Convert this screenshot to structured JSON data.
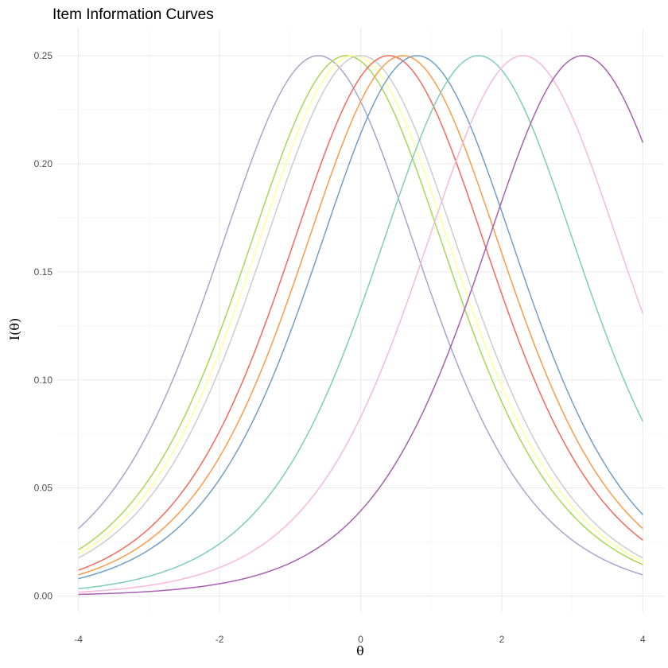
{
  "chart_data": {
    "type": "line",
    "title": "Item Information Curves",
    "xlabel": "θ",
    "ylabel": "I(θ)",
    "xlim": [
      -4.3,
      4.3
    ],
    "ylim": [
      -0.0075,
      0.2625
    ],
    "x_ticks": [
      -4,
      -2,
      0,
      2,
      4
    ],
    "x_tick_labels": [
      "-4",
      "-2",
      "0",
      "2",
      "4"
    ],
    "y_ticks": [
      0,
      0.05,
      0.1,
      0.15,
      0.2,
      0.25
    ],
    "y_tick_labels": [
      "0.00",
      "0.05",
      "0.10",
      "0.15",
      "0.20",
      "0.25"
    ],
    "grid": true,
    "legend": "none",
    "curve_model": "I(θ) = P(θ)(1 − P(θ)), P(θ) = 1 / (1 + e^−(θ − b))",
    "series": [
      {
        "b": -0.6,
        "color": "#A9A4CC"
      },
      {
        "b": -0.2,
        "color": "#A6D854"
      },
      {
        "b": -0.1,
        "color": "#FFFF99"
      },
      {
        "b": 0.0,
        "color": "#CCCCCC"
      },
      {
        "b": 0.4,
        "color": "#F4695C"
      },
      {
        "b": 0.6,
        "color": "#FB9A49"
      },
      {
        "b": 0.8,
        "color": "#6E9FC9"
      },
      {
        "b": 1.67,
        "color": "#7ECDB8"
      },
      {
        "b": 2.3,
        "color": "#F9B8D8"
      },
      {
        "b": 3.15,
        "color": "#A85FB0"
      }
    ]
  }
}
